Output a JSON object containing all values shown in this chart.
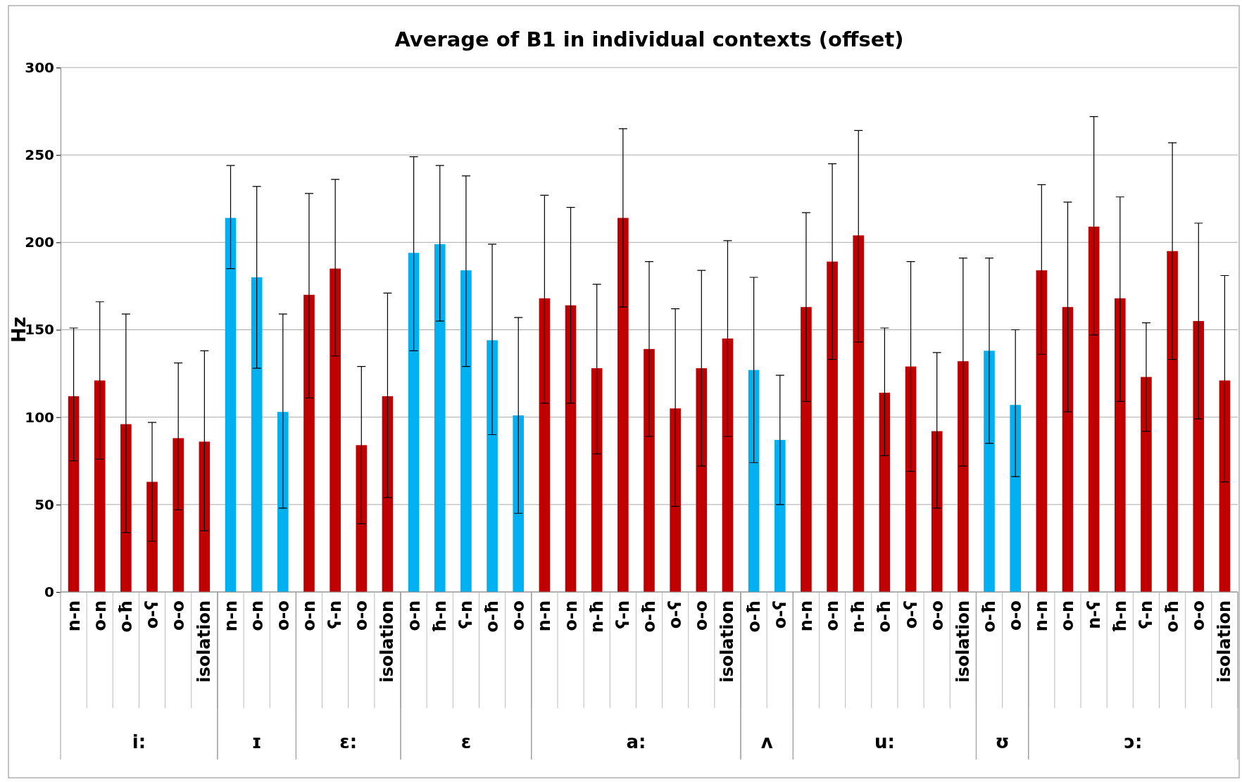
{
  "chart_data": {
    "type": "bar",
    "title": "Average of B1 in individual contexts (offset)",
    "ylabel": "Hz",
    "categories": [
      "n-n",
      "o-n",
      "o-ħ",
      "o-ʕ",
      "o-o",
      "isolation",
      "n-n",
      "o-n",
      "o-o",
      "o-n",
      "ʕ-n",
      "o-o",
      "isolation",
      "o-n",
      "ħ-n",
      "ʕ-n",
      "o-ħ",
      "o-o",
      "n-n",
      "o-n",
      "n-ħ",
      "ʕ-n",
      "o-ħ",
      "o-ʕ",
      "o-o",
      "isolation",
      "o-ħ",
      "o-ʕ",
      "n-n",
      "o-n",
      "n-ħ",
      "o-ħ",
      "o-ʕ",
      "o-o",
      "isolation",
      "o-ħ",
      "o-o",
      "n-n",
      "o-n",
      "n-ʕ",
      "ħ-n",
      "ʕ-n",
      "o-ħ",
      "o-o",
      "isolation"
    ],
    "values": [
      112,
      121,
      96,
      63,
      88,
      86,
      214,
      180,
      103,
      170,
      185,
      84,
      112,
      194,
      199,
      184,
      144,
      101,
      168,
      164,
      128,
      214,
      139,
      105,
      128,
      145,
      127,
      87,
      163,
      189,
      204,
      114,
      129,
      92,
      132,
      138,
      107,
      184,
      163,
      209,
      168,
      123,
      195,
      155,
      121
    ],
    "errors": [
      [
        75,
        151
      ],
      [
        76,
        166
      ],
      [
        34,
        159
      ],
      [
        29,
        97
      ],
      [
        47,
        131
      ],
      [
        35,
        138
      ],
      [
        185,
        244
      ],
      [
        128,
        232
      ],
      [
        48,
        159
      ],
      [
        111,
        228
      ],
      [
        135,
        236
      ],
      [
        39,
        129
      ],
      [
        54,
        171
      ],
      [
        138,
        249
      ],
      [
        155,
        244
      ],
      [
        129,
        238
      ],
      [
        90,
        199
      ],
      [
        45,
        157
      ],
      [
        108,
        227
      ],
      [
        108,
        220
      ],
      [
        79,
        176
      ],
      [
        163,
        265
      ],
      [
        89,
        189
      ],
      [
        49,
        162
      ],
      [
        72,
        184
      ],
      [
        89,
        201
      ],
      [
        74,
        180
      ],
      [
        50,
        124
      ],
      [
        109,
        217
      ],
      [
        133,
        245
      ],
      [
        143,
        264
      ],
      [
        78,
        151
      ],
      [
        69,
        189
      ],
      [
        48,
        137
      ],
      [
        72,
        191
      ],
      [
        85,
        191
      ],
      [
        66,
        150
      ],
      [
        136,
        233
      ],
      [
        103,
        223
      ],
      [
        147,
        272
      ],
      [
        109,
        226
      ],
      [
        92,
        154
      ],
      [
        133,
        257
      ],
      [
        99,
        211
      ],
      [
        63,
        181
      ]
    ],
    "colors": [
      "#c00000",
      "#c00000",
      "#c00000",
      "#c00000",
      "#c00000",
      "#c00000",
      "#00b0f0",
      "#00b0f0",
      "#00b0f0",
      "#c00000",
      "#c00000",
      "#c00000",
      "#c00000",
      "#00b0f0",
      "#00b0f0",
      "#00b0f0",
      "#00b0f0",
      "#00b0f0",
      "#c00000",
      "#c00000",
      "#c00000",
      "#c00000",
      "#c00000",
      "#c00000",
      "#c00000",
      "#c00000",
      "#00b0f0",
      "#00b0f0",
      "#c00000",
      "#c00000",
      "#c00000",
      "#c00000",
      "#c00000",
      "#c00000",
      "#c00000",
      "#00b0f0",
      "#00b0f0",
      "#c00000",
      "#c00000",
      "#c00000",
      "#c00000",
      "#c00000",
      "#c00000",
      "#c00000",
      "#c00000"
    ],
    "annotations": [
      "i:",
      "ɪ",
      "ɛ:",
      "ɛ",
      "a:",
      "ʌ",
      "u:",
      "ʊ",
      "ɔ:"
    ],
    "ylim": [
      0,
      300
    ],
    "yticks": [
      0,
      50,
      100,
      150,
      200,
      250,
      300
    ],
    "grid": "y"
  }
}
